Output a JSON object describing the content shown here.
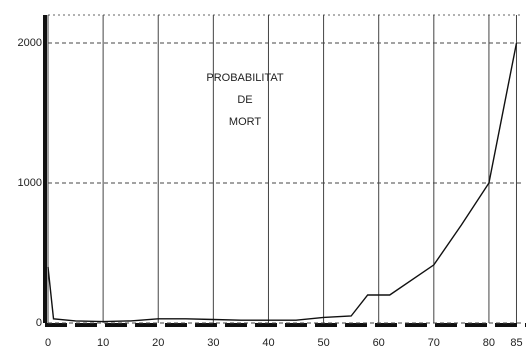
{
  "chart_data": {
    "type": "line",
    "title": [
      "PROBABILITAT",
      "DE",
      "MORT"
    ],
    "x": [
      0,
      1,
      5,
      10,
      15,
      20,
      25,
      30,
      35,
      40,
      45,
      50,
      55,
      58,
      62,
      70,
      75,
      80,
      85
    ],
    "values": [
      400,
      30,
      15,
      10,
      15,
      30,
      30,
      25,
      20,
      20,
      20,
      40,
      50,
      200,
      200,
      415,
      700,
      1000,
      2000
    ],
    "color": "#111111",
    "xlim": [
      0,
      86
    ],
    "xticks": [
      0,
      10,
      20,
      30,
      40,
      50,
      60,
      70,
      80,
      85
    ],
    "ylim": [
      0,
      2200
    ],
    "yticks": [
      0,
      1000,
      2000
    ],
    "grid": true
  }
}
